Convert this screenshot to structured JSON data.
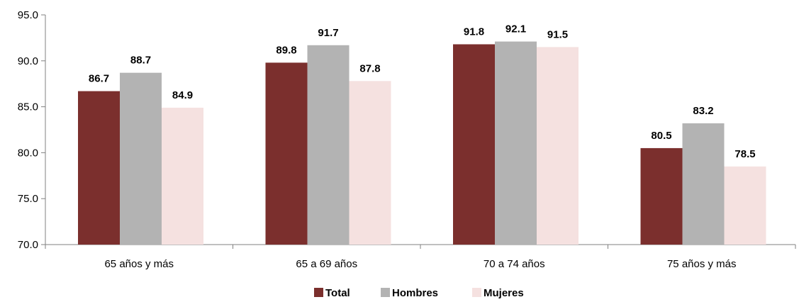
{
  "chart_data": {
    "type": "bar",
    "categories": [
      "65 años y más",
      "65 a 69 años",
      "70 a 74 años",
      "75 años y más"
    ],
    "series": [
      {
        "name": "Total",
        "color": "#7b2f2d",
        "values": [
          86.7,
          89.8,
          91.8,
          80.5
        ]
      },
      {
        "name": "Hombres",
        "color": "#b3b3b3",
        "values": [
          88.7,
          91.7,
          92.1,
          83.2
        ]
      },
      {
        "name": "Mujeres",
        "color": "#f5e1e0",
        "values": [
          84.9,
          87.8,
          91.5,
          78.5
        ]
      }
    ],
    "ylim": [
      70,
      95
    ],
    "yticks": [
      "70.0",
      "75.0",
      "80.0",
      "85.0",
      "90.0",
      "95.0"
    ],
    "grid": false,
    "legend_position": "bottom"
  }
}
